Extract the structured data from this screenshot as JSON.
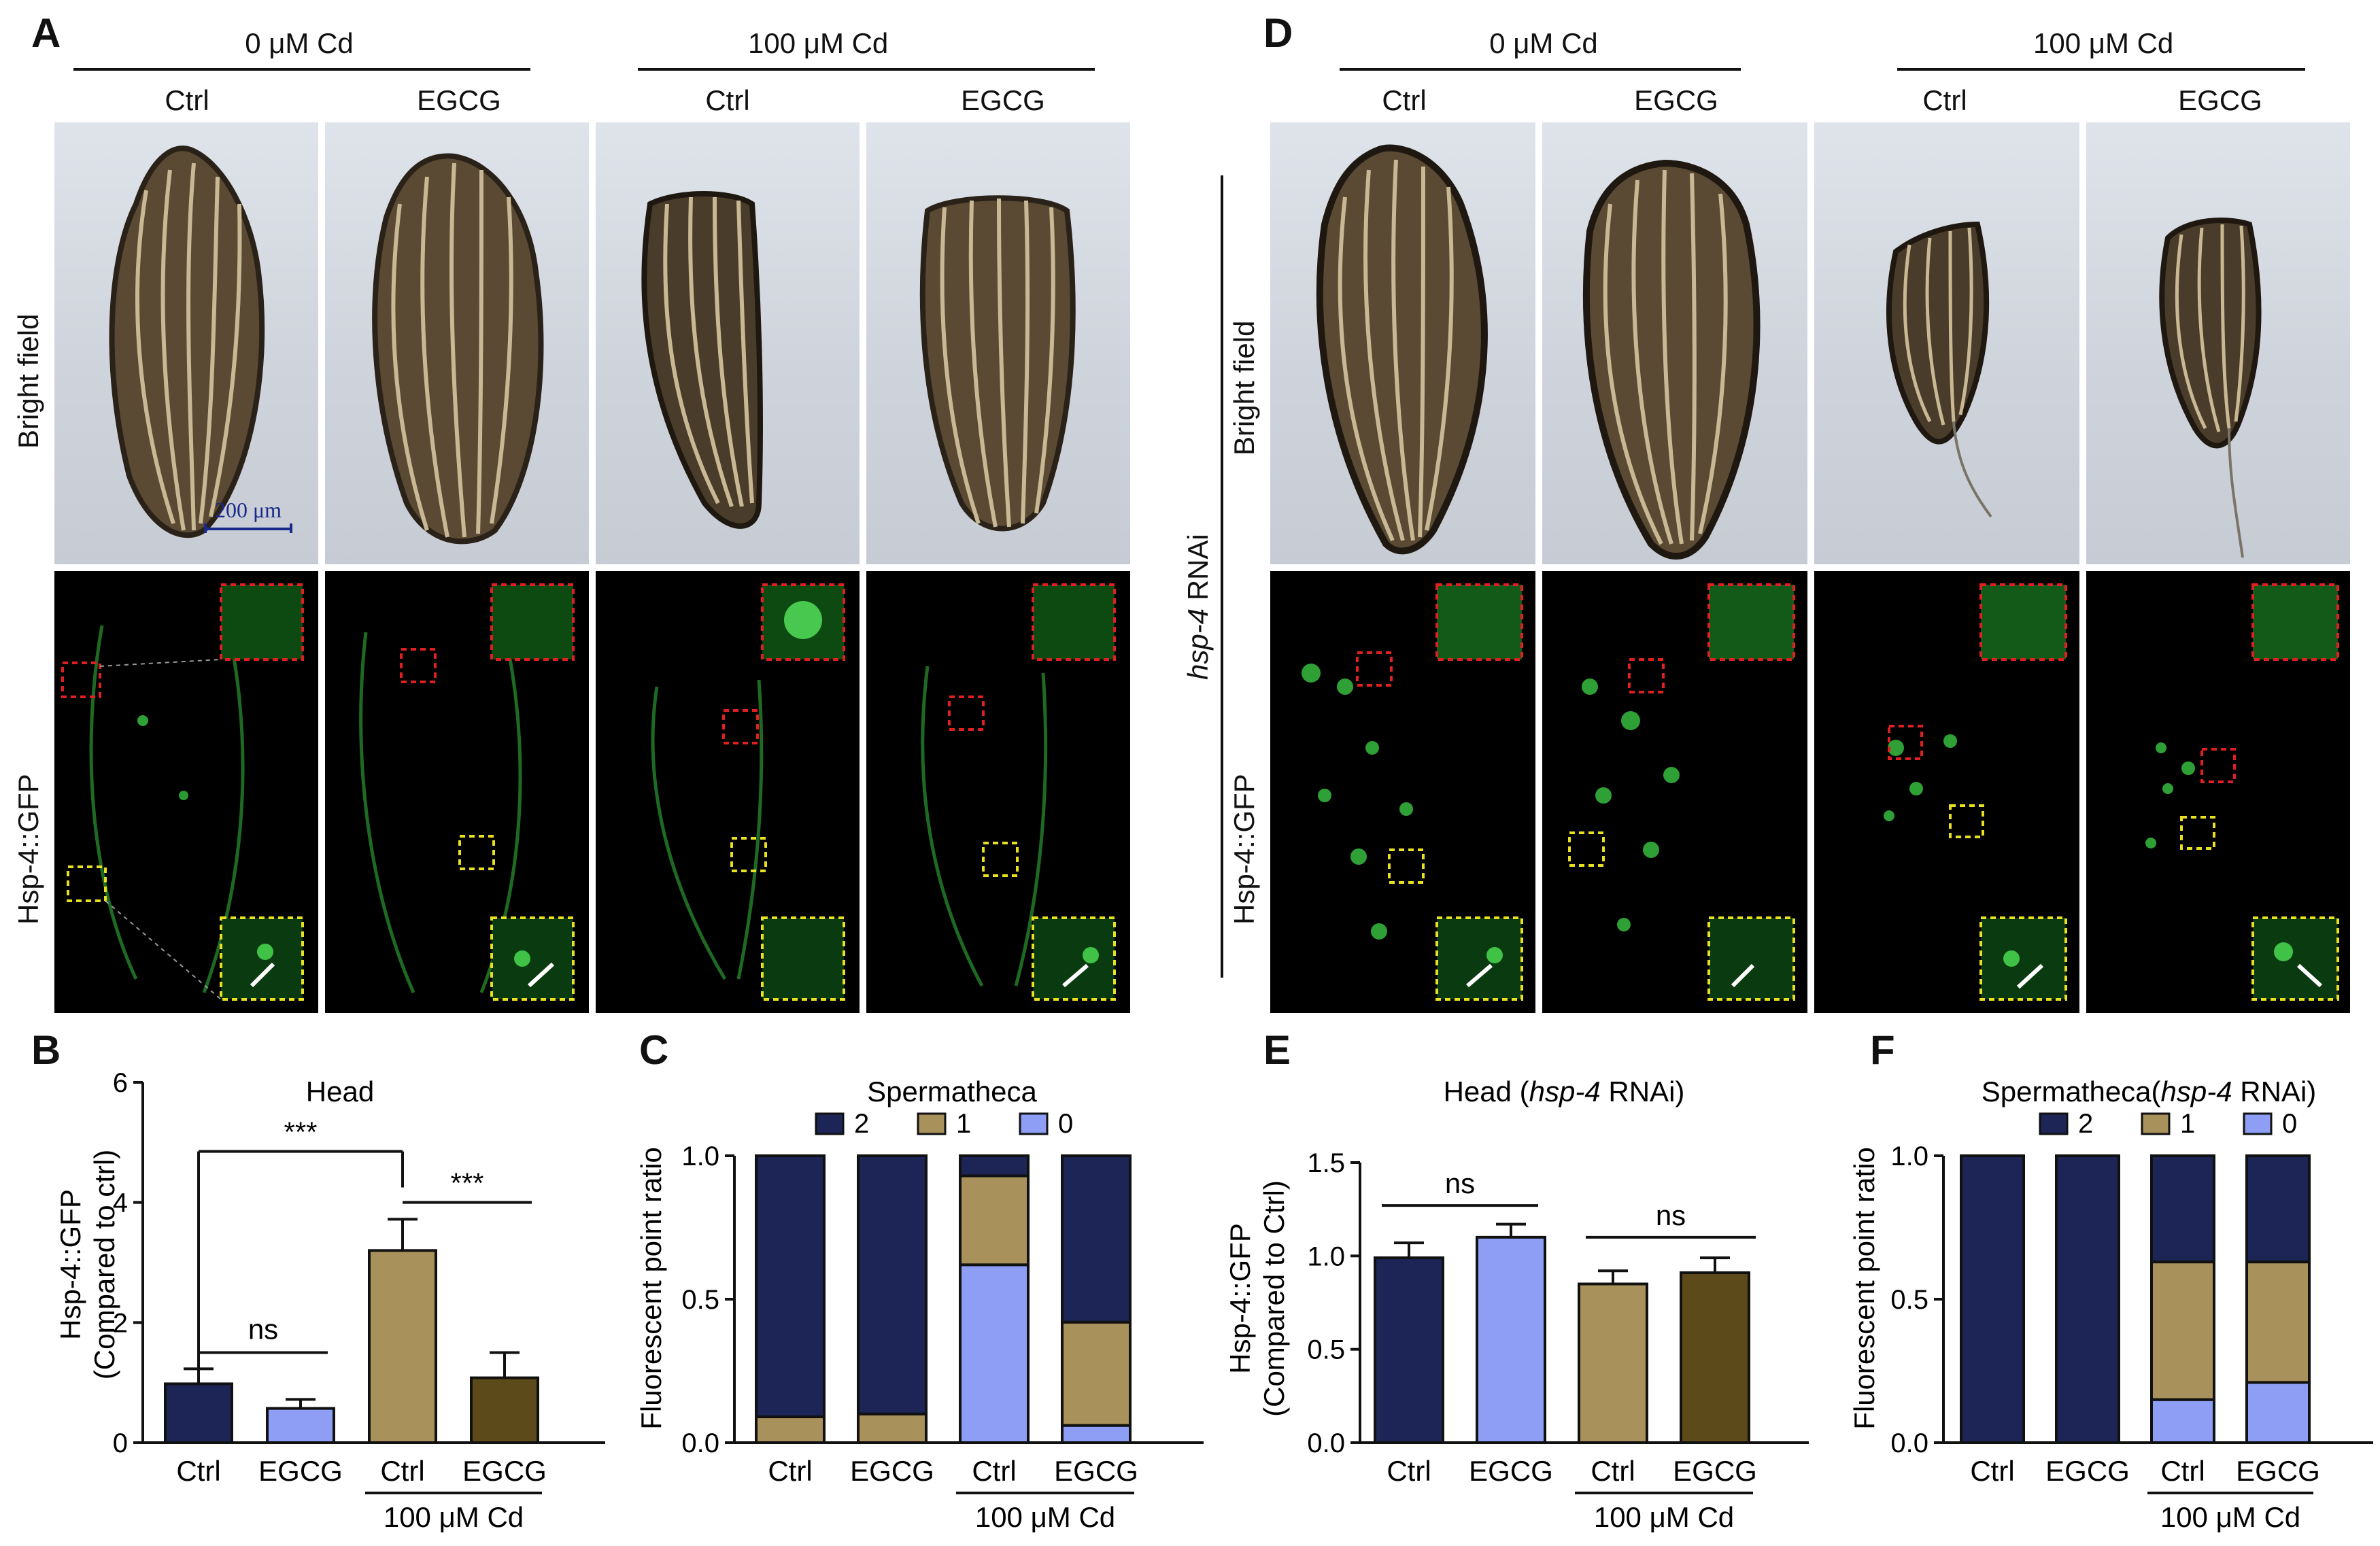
{
  "figure": {
    "panel_A": {
      "letter": "A",
      "group1": "0 μM Cd",
      "group2": "100 μM Cd",
      "col_labels": [
        "Ctrl",
        "EGCG",
        "Ctrl",
        "EGCG"
      ],
      "row_labels": [
        "Bright field",
        "Hsp-4::GFP"
      ],
      "scale_bar": "200 μm"
    },
    "panel_D": {
      "letter": "D",
      "group1": "0 μM Cd",
      "group2": "100 μM Cd",
      "col_labels": [
        "Ctrl",
        "EGCG",
        "Ctrl",
        "EGCG"
      ],
      "row_labels": [
        "Bright field",
        "Hsp-4::GFP"
      ],
      "side_label_italic": "hsp-4",
      "side_label_rest": " RNAi"
    },
    "panel_B": {
      "letter": "B"
    },
    "panel_C": {
      "letter": "C"
    },
    "panel_E": {
      "letter": "E"
    },
    "panel_F": {
      "letter": "F"
    }
  },
  "colors": {
    "navy": "#1c2555",
    "lightblue": "#8e9ef4",
    "tan": "#a8915a",
    "darkbrown": "#5c4a1a",
    "red_box": "#e02020",
    "yellow_box": "#e8e020"
  },
  "chart_data": [
    {
      "id": "B",
      "type": "bar",
      "title": "Head",
      "ylabel_line1": "Hsp-4::GFP",
      "ylabel_line2": "(Compared to ctrl)",
      "categories": [
        "Ctrl",
        "EGCG",
        "Ctrl",
        "EGCG"
      ],
      "values": [
        0.98,
        0.57,
        3.2,
        1.08
      ],
      "errors": [
        0.25,
        0.15,
        0.52,
        0.42
      ],
      "ylim": [
        0,
        6
      ],
      "yticks": [
        0,
        2,
        4,
        6
      ],
      "group_label": "100 μM Cd",
      "significance": [
        {
          "label": "ns"
        },
        {
          "label": "***"
        },
        {
          "label": "***"
        }
      ]
    },
    {
      "id": "C",
      "type": "bar",
      "stacked": true,
      "title": "Spermatheca",
      "ylabel": "Fluorescent point ratio",
      "categories": [
        "Ctrl",
        "EGCG",
        "Ctrl",
        "EGCG"
      ],
      "legend": [
        "2",
        "1",
        "0"
      ],
      "series": [
        {
          "name": "0",
          "values": [
            0.0,
            0.0,
            0.62,
            0.06
          ]
        },
        {
          "name": "1",
          "values": [
            0.09,
            0.1,
            0.31,
            0.36
          ]
        },
        {
          "name": "2",
          "values": [
            0.91,
            0.9,
            0.07,
            0.58
          ]
        }
      ],
      "ylim": [
        0,
        1.0
      ],
      "yticks": [
        "0.0",
        "0.5",
        "1.0"
      ],
      "group_label": "100 μM Cd"
    },
    {
      "id": "E",
      "type": "bar",
      "title_pre": "Head (",
      "title_italic": "hsp-4",
      "title_post": " RNAi)",
      "ylabel_line1": "Hsp-4::GFP",
      "ylabel_line2": "(Compared to Ctrl)",
      "categories": [
        "Ctrl",
        "EGCG",
        "Ctrl",
        "EGCG"
      ],
      "values": [
        0.99,
        1.1,
        0.85,
        0.91
      ],
      "errors": [
        0.08,
        0.07,
        0.07,
        0.08
      ],
      "ylim": [
        0,
        1.5
      ],
      "yticks": [
        "0.0",
        "0.5",
        "1.0",
        "1.5"
      ],
      "group_label": "100 μM Cd",
      "significance": [
        {
          "label": "ns"
        },
        {
          "label": "ns"
        }
      ]
    },
    {
      "id": "F",
      "type": "bar",
      "stacked": true,
      "title_pre": "Spermatheca(",
      "title_italic": "hsp-4",
      "title_post": " RNAi)",
      "ylabel": "Fluorescent point ratio",
      "categories": [
        "Ctrl",
        "EGCG",
        "Ctrl",
        "EGCG"
      ],
      "legend": [
        "2",
        "1",
        "0"
      ],
      "series": [
        {
          "name": "0",
          "values": [
            0.0,
            0.0,
            0.15,
            0.21
          ]
        },
        {
          "name": "1",
          "values": [
            0.0,
            0.0,
            0.48,
            0.42
          ]
        },
        {
          "name": "2",
          "values": [
            1.0,
            1.0,
            0.37,
            0.37
          ]
        }
      ],
      "ylim": [
        0,
        1.0
      ],
      "yticks": [
        "0.0",
        "0.5",
        "1.0"
      ],
      "group_label": "100 μM Cd"
    }
  ]
}
